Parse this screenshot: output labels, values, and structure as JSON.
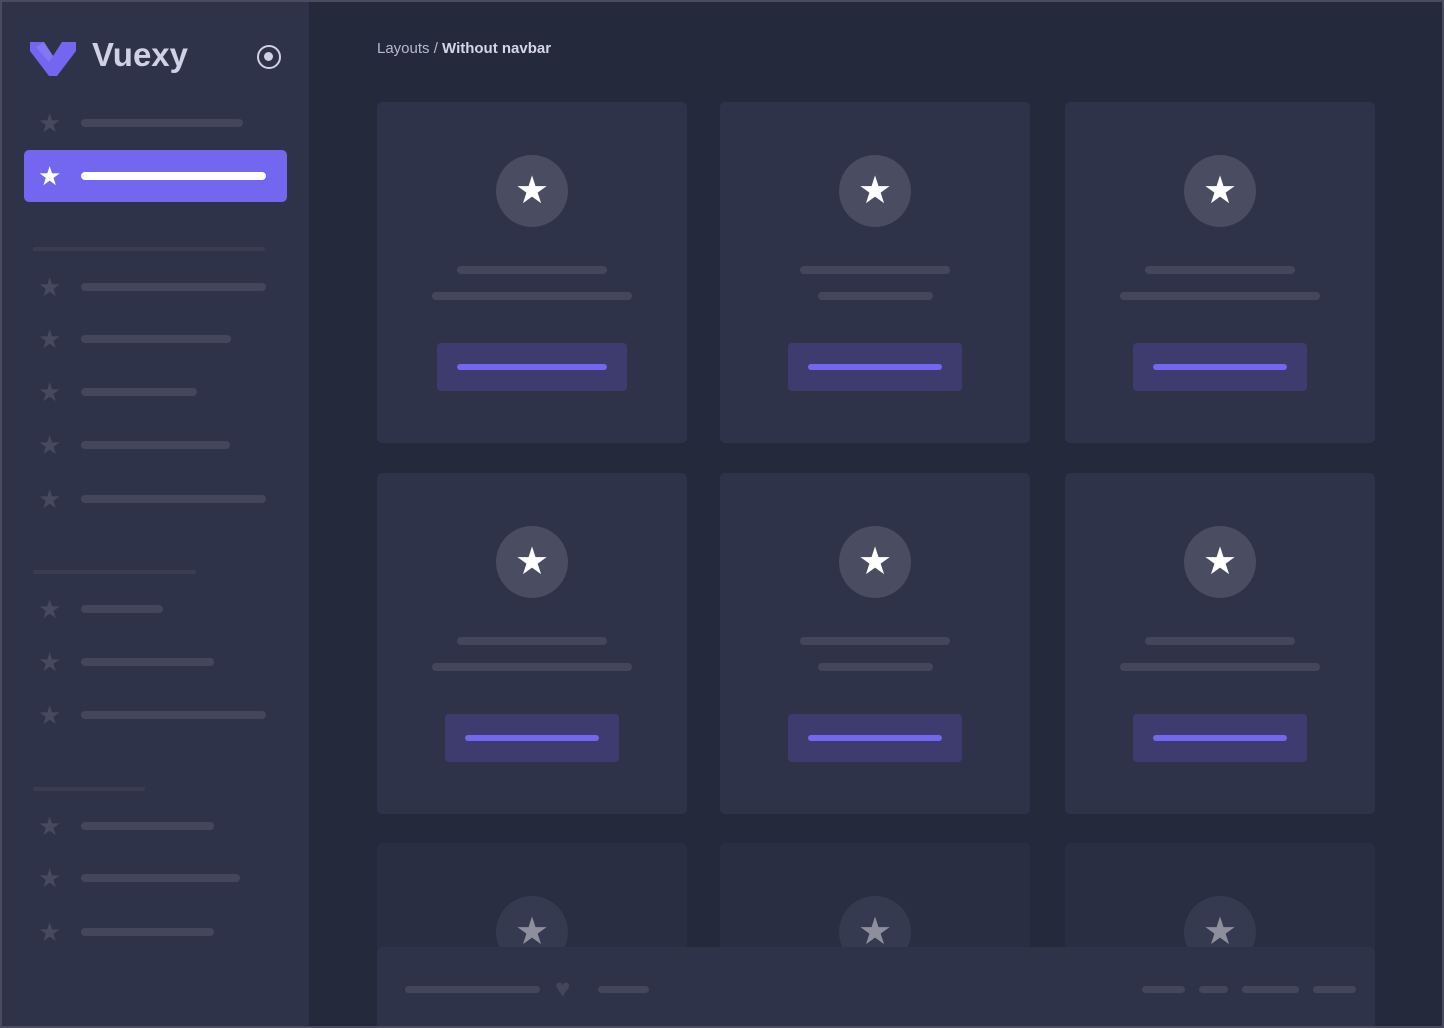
{
  "brand": {
    "name": "Vuexy",
    "logo_color": "#7367f0"
  },
  "sidebar": {
    "pin_icon": "radio-circle-icon",
    "active_index": 1,
    "item_count": 13
  },
  "breadcrumb": {
    "parent": "Layouts /",
    "current": "Without navbar"
  },
  "colors": {
    "accent": "#7367f0",
    "background": "#25293c",
    "surface": "#2f3349"
  },
  "cards": {
    "count": 9,
    "icon": "star-icon"
  },
  "footer": {
    "icon": "heart-icon"
  }
}
